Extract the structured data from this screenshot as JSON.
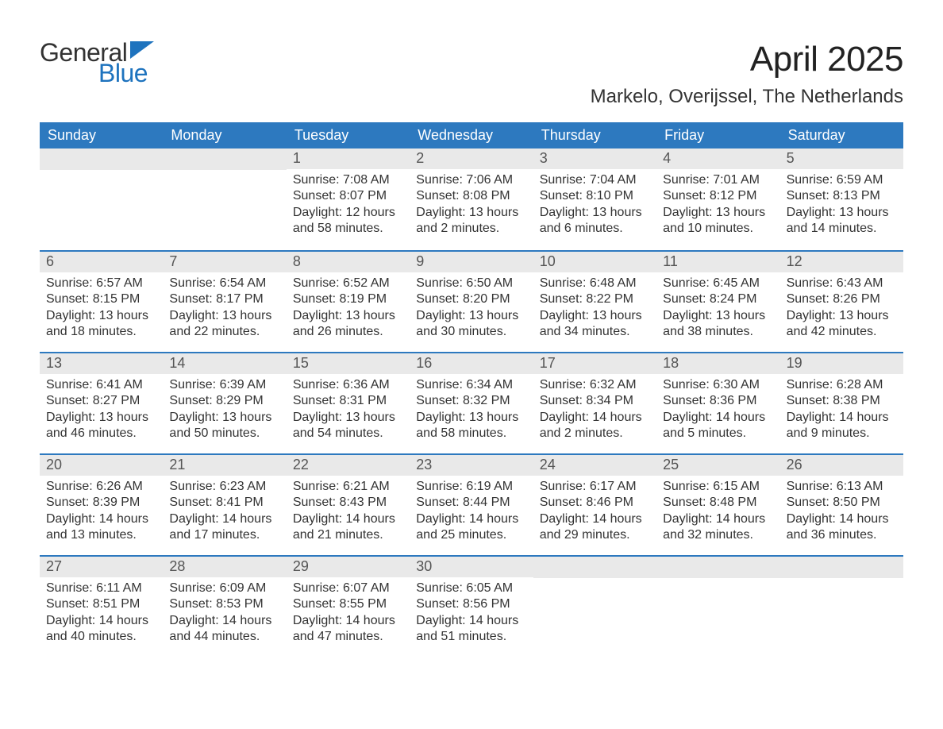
{
  "logo": {
    "text_general": "General",
    "text_blue": "Blue",
    "icon_color": "#1e73be"
  },
  "title": "April 2025",
  "location": "Markelo, Overijssel, The Netherlands",
  "colors": {
    "header_bg": "#2d79bf",
    "header_text": "#ffffff",
    "daynum_bg": "#e9e9e9",
    "daynum_text": "#555555",
    "body_text": "#333333",
    "row_border": "#2d79bf",
    "page_bg": "#ffffff",
    "logo_blue": "#1e73be"
  },
  "typography": {
    "title_fontsize_pt": 33,
    "location_fontsize_pt": 18,
    "dayhead_fontsize_pt": 14,
    "daynum_fontsize_pt": 14,
    "body_fontsize_pt": 12,
    "font_family": "Arial"
  },
  "calendar": {
    "layout": "7-column month grid, 5 week rows, first weekday Sunday",
    "day_names": [
      "Sunday",
      "Monday",
      "Tuesday",
      "Wednesday",
      "Thursday",
      "Friday",
      "Saturday"
    ],
    "first_weekday_index": 2,
    "days": [
      {
        "n": 1,
        "sunrise": "7:08 AM",
        "sunset": "8:07 PM",
        "daylight": "12 hours and 58 minutes."
      },
      {
        "n": 2,
        "sunrise": "7:06 AM",
        "sunset": "8:08 PM",
        "daylight": "13 hours and 2 minutes."
      },
      {
        "n": 3,
        "sunrise": "7:04 AM",
        "sunset": "8:10 PM",
        "daylight": "13 hours and 6 minutes."
      },
      {
        "n": 4,
        "sunrise": "7:01 AM",
        "sunset": "8:12 PM",
        "daylight": "13 hours and 10 minutes."
      },
      {
        "n": 5,
        "sunrise": "6:59 AM",
        "sunset": "8:13 PM",
        "daylight": "13 hours and 14 minutes."
      },
      {
        "n": 6,
        "sunrise": "6:57 AM",
        "sunset": "8:15 PM",
        "daylight": "13 hours and 18 minutes."
      },
      {
        "n": 7,
        "sunrise": "6:54 AM",
        "sunset": "8:17 PM",
        "daylight": "13 hours and 22 minutes."
      },
      {
        "n": 8,
        "sunrise": "6:52 AM",
        "sunset": "8:19 PM",
        "daylight": "13 hours and 26 minutes."
      },
      {
        "n": 9,
        "sunrise": "6:50 AM",
        "sunset": "8:20 PM",
        "daylight": "13 hours and 30 minutes."
      },
      {
        "n": 10,
        "sunrise": "6:48 AM",
        "sunset": "8:22 PM",
        "daylight": "13 hours and 34 minutes."
      },
      {
        "n": 11,
        "sunrise": "6:45 AM",
        "sunset": "8:24 PM",
        "daylight": "13 hours and 38 minutes."
      },
      {
        "n": 12,
        "sunrise": "6:43 AM",
        "sunset": "8:26 PM",
        "daylight": "13 hours and 42 minutes."
      },
      {
        "n": 13,
        "sunrise": "6:41 AM",
        "sunset": "8:27 PM",
        "daylight": "13 hours and 46 minutes."
      },
      {
        "n": 14,
        "sunrise": "6:39 AM",
        "sunset": "8:29 PM",
        "daylight": "13 hours and 50 minutes."
      },
      {
        "n": 15,
        "sunrise": "6:36 AM",
        "sunset": "8:31 PM",
        "daylight": "13 hours and 54 minutes."
      },
      {
        "n": 16,
        "sunrise": "6:34 AM",
        "sunset": "8:32 PM",
        "daylight": "13 hours and 58 minutes."
      },
      {
        "n": 17,
        "sunrise": "6:32 AM",
        "sunset": "8:34 PM",
        "daylight": "14 hours and 2 minutes."
      },
      {
        "n": 18,
        "sunrise": "6:30 AM",
        "sunset": "8:36 PM",
        "daylight": "14 hours and 5 minutes."
      },
      {
        "n": 19,
        "sunrise": "6:28 AM",
        "sunset": "8:38 PM",
        "daylight": "14 hours and 9 minutes."
      },
      {
        "n": 20,
        "sunrise": "6:26 AM",
        "sunset": "8:39 PM",
        "daylight": "14 hours and 13 minutes."
      },
      {
        "n": 21,
        "sunrise": "6:23 AM",
        "sunset": "8:41 PM",
        "daylight": "14 hours and 17 minutes."
      },
      {
        "n": 22,
        "sunrise": "6:21 AM",
        "sunset": "8:43 PM",
        "daylight": "14 hours and 21 minutes."
      },
      {
        "n": 23,
        "sunrise": "6:19 AM",
        "sunset": "8:44 PM",
        "daylight": "14 hours and 25 minutes."
      },
      {
        "n": 24,
        "sunrise": "6:17 AM",
        "sunset": "8:46 PM",
        "daylight": "14 hours and 29 minutes."
      },
      {
        "n": 25,
        "sunrise": "6:15 AM",
        "sunset": "8:48 PM",
        "daylight": "14 hours and 32 minutes."
      },
      {
        "n": 26,
        "sunrise": "6:13 AM",
        "sunset": "8:50 PM",
        "daylight": "14 hours and 36 minutes."
      },
      {
        "n": 27,
        "sunrise": "6:11 AM",
        "sunset": "8:51 PM",
        "daylight": "14 hours and 40 minutes."
      },
      {
        "n": 28,
        "sunrise": "6:09 AM",
        "sunset": "8:53 PM",
        "daylight": "14 hours and 44 minutes."
      },
      {
        "n": 29,
        "sunrise": "6:07 AM",
        "sunset": "8:55 PM",
        "daylight": "14 hours and 47 minutes."
      },
      {
        "n": 30,
        "sunrise": "6:05 AM",
        "sunset": "8:56 PM",
        "daylight": "14 hours and 51 minutes."
      }
    ],
    "labels": {
      "sunrise_prefix": "Sunrise: ",
      "sunset_prefix": "Sunset: ",
      "daylight_prefix": "Daylight: "
    }
  }
}
